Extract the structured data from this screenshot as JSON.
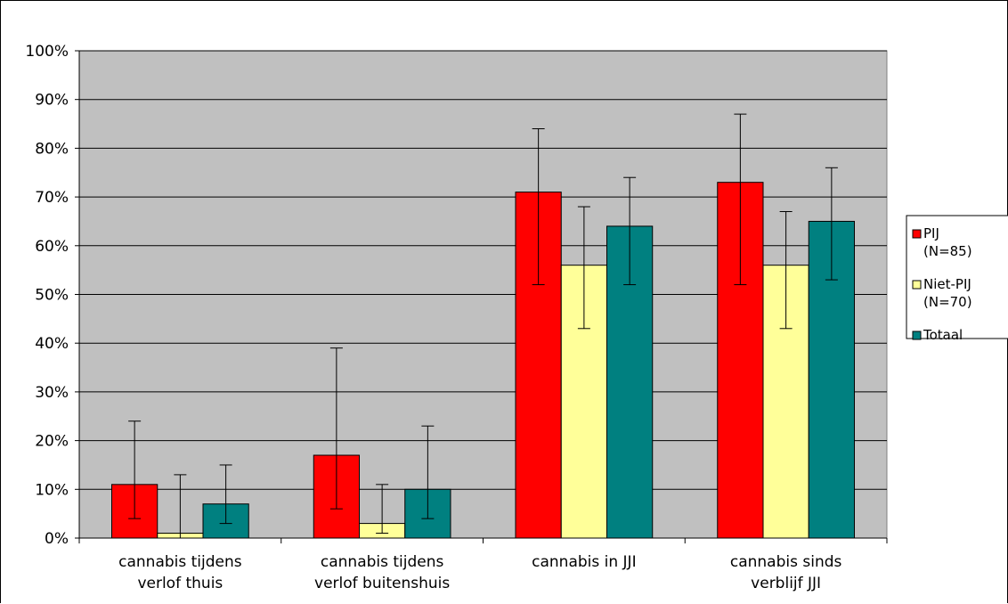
{
  "chart_data": {
    "type": "bar",
    "title": "",
    "xlabel": "",
    "ylabel": "",
    "ylim": [
      0,
      100
    ],
    "y_ticks": [
      "0%",
      "10%",
      "20%",
      "30%",
      "40%",
      "50%",
      "60%",
      "70%",
      "80%",
      "90%",
      "100%"
    ],
    "categories": [
      [
        "cannabis tijdens",
        "verlof thuis"
      ],
      [
        "cannabis tijdens",
        "verlof buitenshuis"
      ],
      [
        "cannabis in JJI"
      ],
      [
        "cannabis sinds",
        "verblijf JJI"
      ]
    ],
    "series": [
      {
        "name": "PIJ (N=85)",
        "legend_lines": [
          "PIJ",
          "(N=85)"
        ],
        "color": "#ff0000",
        "values": [
          11,
          17,
          71,
          73
        ],
        "err_low": [
          4,
          6,
          52,
          52
        ],
        "err_high": [
          24,
          39,
          84,
          87
        ]
      },
      {
        "name": "Niet-PIJ (N=70)",
        "legend_lines": [
          "Niet-PIJ",
          "(N=70)"
        ],
        "color": "#ffff99",
        "values": [
          1,
          3,
          56,
          56
        ],
        "err_low": [
          0,
          1,
          43,
          43
        ],
        "err_high": [
          13,
          11,
          68,
          67
        ]
      },
      {
        "name": "Totaal",
        "legend_lines": [
          "Totaal"
        ],
        "color": "#008080",
        "values": [
          7,
          10,
          64,
          65
        ],
        "err_low": [
          3,
          4,
          52,
          53
        ],
        "err_high": [
          15,
          23,
          74,
          76
        ]
      }
    ],
    "grid": true,
    "plot_background": "#c0c0c0",
    "legend_position": "right"
  }
}
